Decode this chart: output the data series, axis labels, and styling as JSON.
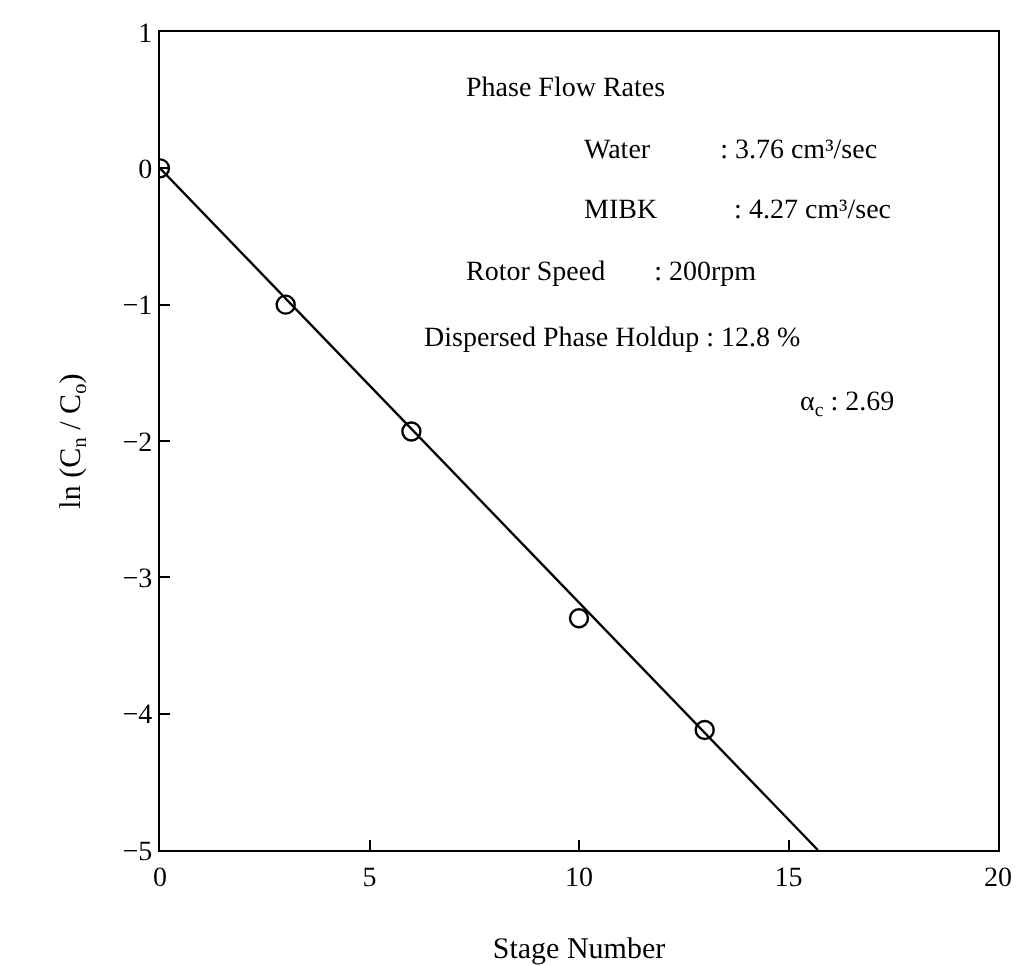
{
  "chart_data": {
    "type": "scatter",
    "xlabel": "Stage Number",
    "ylabel": "ln (C$_{n}$ / C$_{o}$)",
    "xlim": [
      0,
      20
    ],
    "xticks": [
      0,
      5,
      10,
      15,
      20
    ],
    "ylim": [
      -5,
      1
    ],
    "yticks": [
      -5,
      -4,
      -3,
      -2,
      -1,
      0,
      1
    ],
    "grid": false,
    "line_style": "solid",
    "series": [
      {
        "color": "#000000",
        "marker": "circle",
        "x": [
          0,
          3,
          6,
          10,
          13
        ],
        "values": [
          0,
          -1.0,
          -1.93,
          -3.3,
          -4.12
        ]
      },
      {
        "type": "line",
        "marker": "none",
        "color": "#000000",
        "x": [
          0,
          15.7
        ],
        "values": [
          0,
          -5
        ]
      }
    ],
    "annotations": [
      "Phase Flow Rates",
      "Water          : 3.76 cm³/sec",
      "MIBK           : 4.27 cm³/sec",
      "Rotor Speed       : 200rpm",
      "Dispersed Phase Holdup : 12.8 %",
      "α$_{c}$ : 2.69"
    ]
  }
}
